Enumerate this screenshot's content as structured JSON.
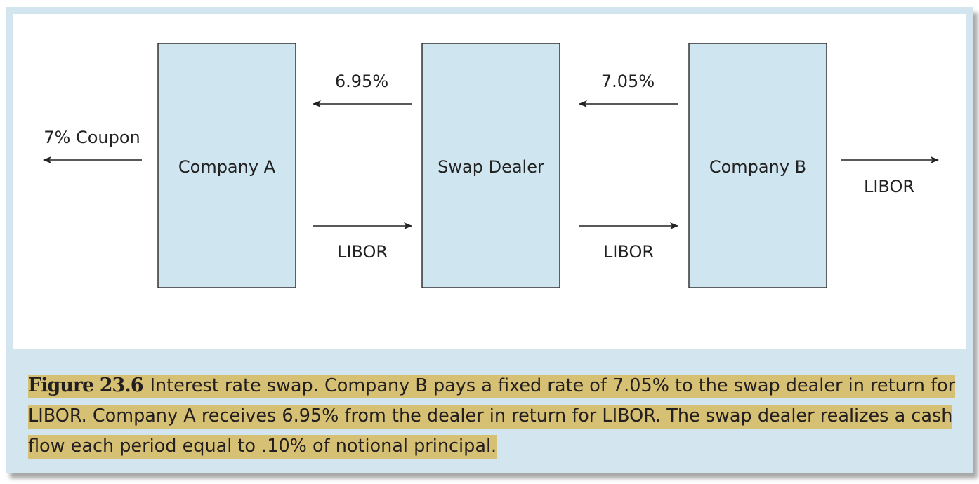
{
  "diagram": {
    "nodes": {
      "company_a": "Company A",
      "swap_dealer": "Swap Dealer",
      "company_b": "Company B"
    },
    "flows": {
      "coupon": "7% Coupon",
      "dealer_to_a": "6.95%",
      "a_to_dealer": "LIBOR",
      "b_to_dealer": "7.05%",
      "dealer_to_b": "LIBOR",
      "b_out": "LIBOR"
    }
  },
  "caption": {
    "label": "Figure 23.6",
    "text": "Interest rate swap. Company B pays a fixed rate of 7.05% to the swap dealer in return for LIBOR. Company A receives 6.95% from the dealer in return for LIBOR. The swap dealer realizes a cash flow each period equal to .10% of notional principal."
  },
  "colors": {
    "box_fill": "#cfe5f0",
    "frame": "#d3e6ef",
    "highlight": "#d6c074"
  }
}
